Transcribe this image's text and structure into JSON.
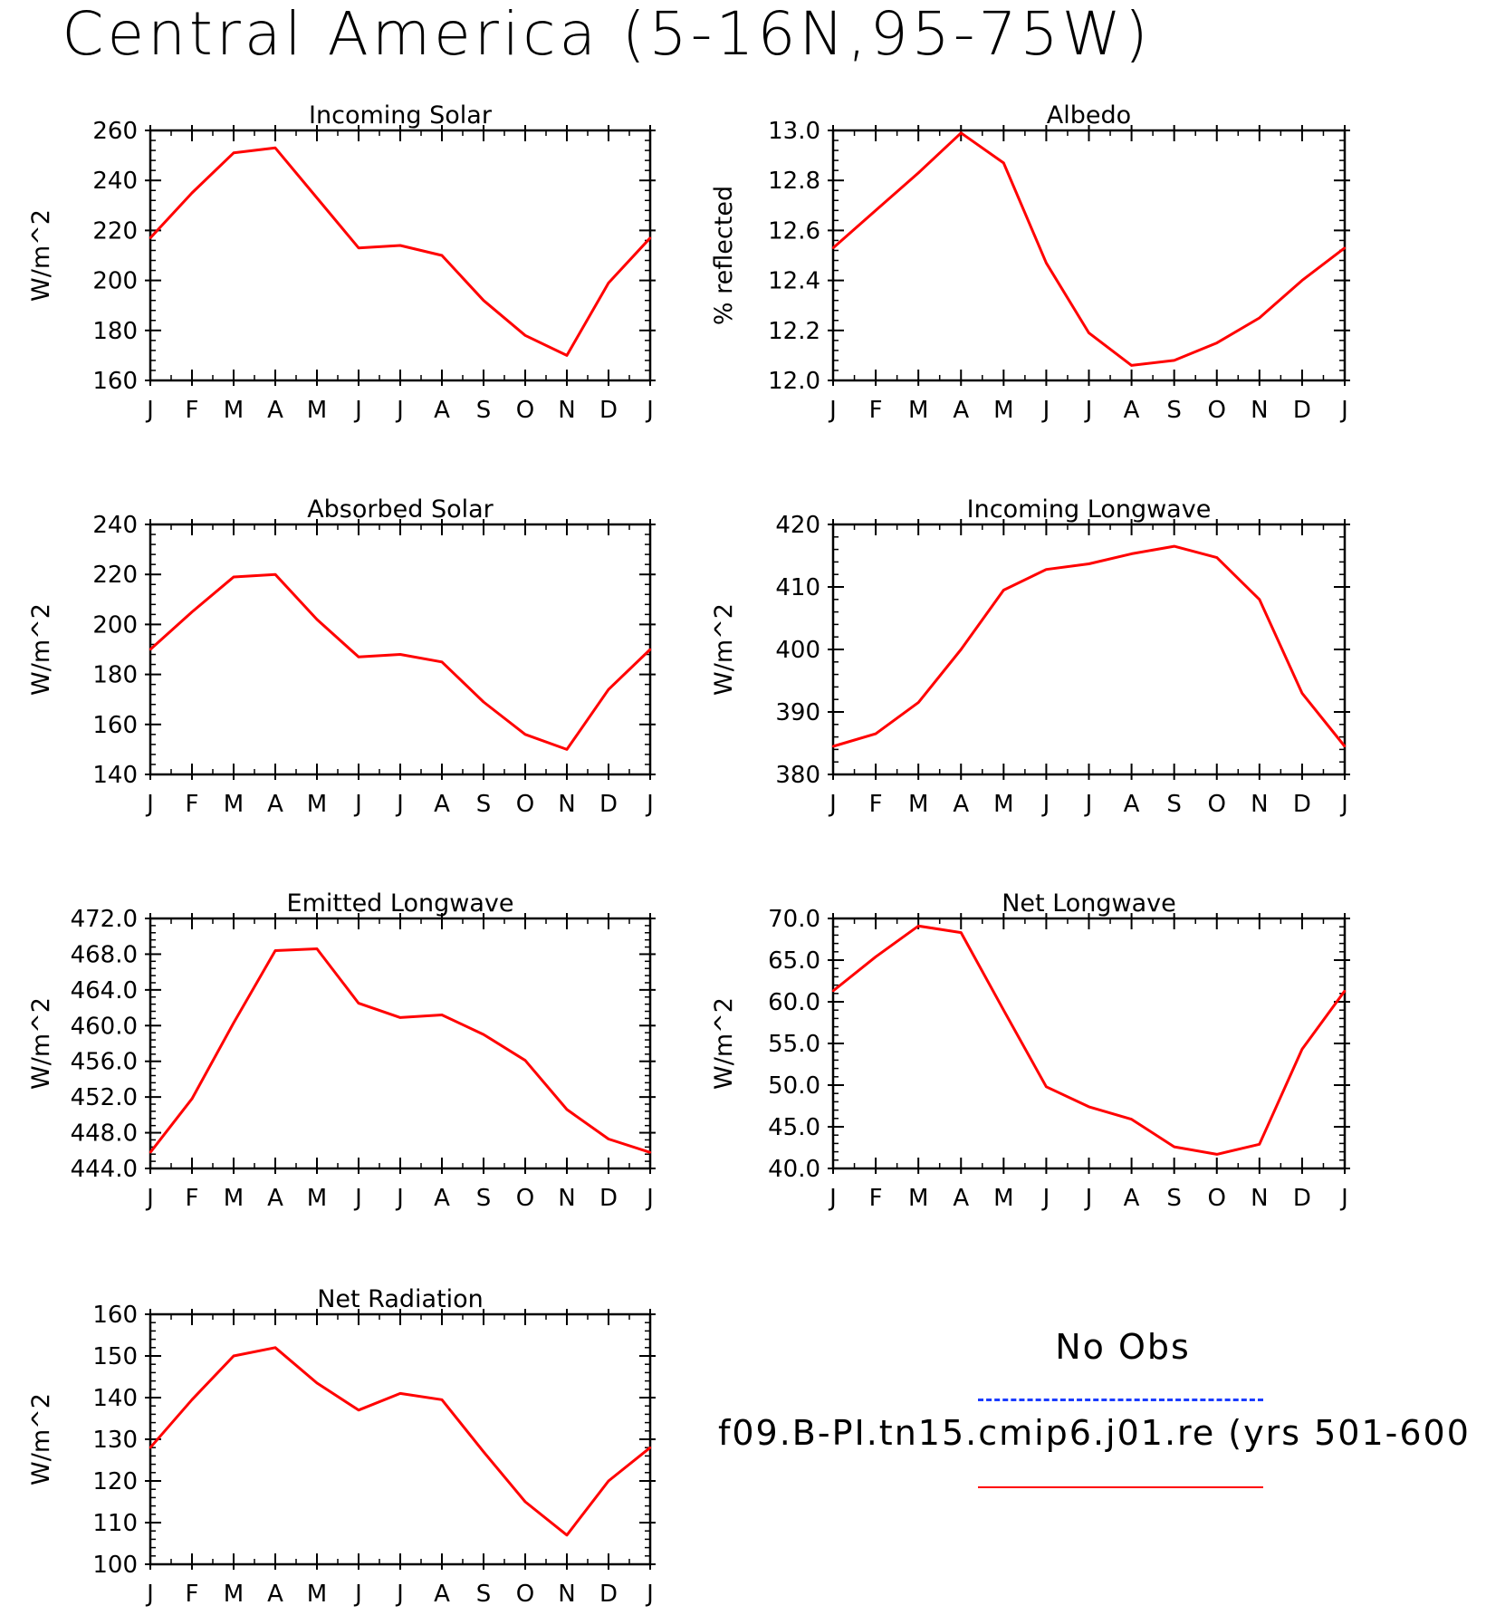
{
  "page_title": "Central America (5-16N,95-75W)",
  "legend": {
    "obs_label": "No Obs",
    "obs_color": "#1a3cff",
    "model_label": "f09.B-PI.tn15.cmip6.j01.re (yrs 501-600",
    "model_color": "#ff0000"
  },
  "chart_data": [
    {
      "type": "line",
      "title": "Incoming Solar",
      "ylabel": "W/m^2",
      "xlabel": "",
      "categories": [
        "J",
        "F",
        "M",
        "A",
        "M",
        "J",
        "J",
        "A",
        "S",
        "O",
        "N",
        "D",
        "J"
      ],
      "ylim": [
        160,
        260
      ],
      "yticks": [
        "160",
        "180",
        "200",
        "220",
        "240",
        "260"
      ],
      "series": [
        {
          "values": [
            217,
            235,
            251,
            253,
            233,
            213,
            214,
            210,
            192,
            178,
            170,
            199,
            217
          ]
        }
      ]
    },
    {
      "type": "line",
      "title": "Albedo",
      "ylabel": "% reflected",
      "xlabel": "",
      "categories": [
        "J",
        "F",
        "M",
        "A",
        "M",
        "J",
        "J",
        "A",
        "S",
        "O",
        "N",
        "D",
        "J"
      ],
      "ylim": [
        12.0,
        13.0
      ],
      "yticks": [
        "12.0",
        "12.2",
        "12.4",
        "12.6",
        "12.8",
        "13.0"
      ],
      "series": [
        {
          "values": [
            12.53,
            12.68,
            12.83,
            12.99,
            12.87,
            12.47,
            12.19,
            12.06,
            12.08,
            12.15,
            12.25,
            12.4,
            12.53
          ]
        }
      ]
    },
    {
      "type": "line",
      "title": "Absorbed Solar",
      "ylabel": "W/m^2",
      "xlabel": "",
      "categories": [
        "J",
        "F",
        "M",
        "A",
        "M",
        "J",
        "J",
        "A",
        "S",
        "O",
        "N",
        "D",
        "J"
      ],
      "ylim": [
        140,
        240
      ],
      "yticks": [
        "140",
        "160",
        "180",
        "200",
        "220",
        "240"
      ],
      "series": [
        {
          "values": [
            190,
            205,
            219,
            220,
            202,
            187,
            188,
            185,
            169,
            156,
            150,
            174,
            190
          ]
        }
      ]
    },
    {
      "type": "line",
      "title": "Incoming Longwave",
      "ylabel": "W/m^2",
      "xlabel": "",
      "categories": [
        "J",
        "F",
        "M",
        "A",
        "M",
        "J",
        "J",
        "A",
        "S",
        "O",
        "N",
        "D",
        "J"
      ],
      "ylim": [
        380,
        420
      ],
      "yticks": [
        "380",
        "390",
        "400",
        "410",
        "420"
      ],
      "series": [
        {
          "values": [
            384.5,
            386.5,
            391.5,
            400.0,
            409.5,
            412.8,
            413.7,
            415.3,
            416.5,
            414.7,
            408.0,
            393.0,
            384.5
          ]
        }
      ]
    },
    {
      "type": "line",
      "title": "Emitted Longwave",
      "ylabel": "W/m^2",
      "xlabel": "",
      "categories": [
        "J",
        "F",
        "M",
        "A",
        "M",
        "J",
        "J",
        "A",
        "S",
        "O",
        "N",
        "D",
        "J"
      ],
      "ylim": [
        444.0,
        472.0
      ],
      "yticks": [
        "444.0",
        "448.0",
        "452.0",
        "456.0",
        "460.0",
        "464.0",
        "468.0",
        "472.0"
      ],
      "series": [
        {
          "values": [
            445.8,
            451.8,
            460.3,
            468.4,
            468.6,
            462.5,
            460.9,
            461.2,
            459.0,
            456.1,
            450.6,
            447.3,
            445.8
          ]
        }
      ]
    },
    {
      "type": "line",
      "title": "Net Longwave",
      "ylabel": "W/m^2",
      "xlabel": "",
      "categories": [
        "J",
        "F",
        "M",
        "A",
        "M",
        "J",
        "J",
        "A",
        "S",
        "O",
        "N",
        "D",
        "J"
      ],
      "ylim": [
        40.0,
        70.0
      ],
      "yticks": [
        "40.0",
        "45.0",
        "50.0",
        "55.0",
        "60.0",
        "65.0",
        "70.0"
      ],
      "series": [
        {
          "values": [
            61.3,
            65.4,
            69.1,
            68.3,
            59.0,
            49.8,
            47.4,
            45.9,
            42.6,
            41.7,
            42.9,
            54.3,
            61.3
          ]
        }
      ]
    },
    {
      "type": "line",
      "title": "Net Radiation",
      "ylabel": "W/m^2",
      "xlabel": "",
      "categories": [
        "J",
        "F",
        "M",
        "A",
        "M",
        "J",
        "J",
        "A",
        "S",
        "O",
        "N",
        "D",
        "J"
      ],
      "ylim": [
        100,
        160
      ],
      "yticks": [
        "100",
        "110",
        "120",
        "130",
        "140",
        "150",
        "160"
      ],
      "series": [
        {
          "values": [
            128,
            139.5,
            150,
            152,
            143.5,
            137,
            141,
            139.5,
            127,
            115,
            107,
            120,
            128
          ]
        }
      ]
    }
  ]
}
